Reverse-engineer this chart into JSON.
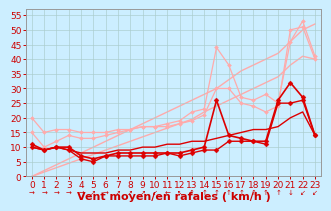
{
  "background_color": "#cceeff",
  "grid_color": "#aacccc",
  "xlabel": "Vent moyen/en rafales ( km/h )",
  "xlabel_color": "#cc0000",
  "tick_color": "#cc0000",
  "xlabel_fontsize": 8,
  "tick_fontsize": 6.5,
  "xlim": [
    -0.5,
    23.5
  ],
  "ylim": [
    0,
    57
  ],
  "yticks": [
    0,
    5,
    10,
    15,
    20,
    25,
    30,
    35,
    40,
    45,
    50,
    55
  ],
  "xticks": [
    0,
    1,
    2,
    3,
    4,
    5,
    6,
    7,
    8,
    9,
    10,
    11,
    12,
    13,
    14,
    15,
    16,
    17,
    18,
    19,
    20,
    21,
    22,
    23
  ],
  "series": [
    {
      "comment": "light pink upper diagonal line (no markers)",
      "x": [
        0,
        1,
        2,
        3,
        4,
        5,
        6,
        7,
        8,
        9,
        10,
        11,
        12,
        13,
        14,
        15,
        16,
        17,
        18,
        19,
        20,
        21,
        22,
        23
      ],
      "y": [
        0,
        2,
        4,
        6,
        8,
        10,
        12,
        14,
        16,
        18,
        20,
        22,
        24,
        26,
        28,
        30,
        33,
        36,
        38,
        40,
        42,
        46,
        50,
        52
      ],
      "color": "#ffaaaa",
      "linewidth": 1.0,
      "marker": null,
      "zorder": 1
    },
    {
      "comment": "light pink middle diagonal line (no markers)",
      "x": [
        0,
        1,
        2,
        3,
        4,
        5,
        6,
        7,
        8,
        9,
        10,
        11,
        12,
        13,
        14,
        15,
        16,
        17,
        18,
        19,
        20,
        21,
        22,
        23
      ],
      "y": [
        0,
        1.5,
        3,
        4.5,
        6,
        7.5,
        9,
        10.5,
        12,
        13.5,
        15,
        16.5,
        18,
        19.5,
        22,
        24,
        26,
        28,
        30,
        32,
        34,
        38,
        41,
        40
      ],
      "color": "#ffaaaa",
      "linewidth": 1.0,
      "marker": null,
      "zorder": 1
    },
    {
      "comment": "light pink with diamond markers - upper jagged",
      "x": [
        0,
        1,
        2,
        3,
        4,
        5,
        6,
        7,
        8,
        9,
        10,
        11,
        12,
        13,
        14,
        15,
        16,
        17,
        18,
        19,
        20,
        21,
        22,
        23
      ],
      "y": [
        20,
        15,
        16,
        16,
        15,
        15,
        15,
        16,
        16,
        17,
        17,
        18,
        19,
        22,
        23,
        44,
        38,
        27,
        26,
        28,
        25,
        46,
        53,
        41
      ],
      "color": "#ffaaaa",
      "linewidth": 0.9,
      "marker": "D",
      "markersize": 2,
      "zorder": 2
    },
    {
      "comment": "light pink with diamond markers - lower jagged",
      "x": [
        0,
        1,
        2,
        3,
        4,
        5,
        6,
        7,
        8,
        9,
        10,
        11,
        12,
        13,
        14,
        15,
        16,
        17,
        18,
        19,
        20,
        21,
        22,
        23
      ],
      "y": [
        15,
        10,
        12,
        14,
        13,
        13,
        14,
        15,
        16,
        17,
        17,
        17,
        18,
        19,
        21,
        30,
        30,
        25,
        24,
        22,
        24,
        50,
        51,
        40
      ],
      "color": "#ffaaaa",
      "linewidth": 0.9,
      "marker": "D",
      "markersize": 2,
      "zorder": 2
    },
    {
      "comment": "dark red with markers - main data upper",
      "x": [
        0,
        1,
        2,
        3,
        4,
        5,
        6,
        7,
        8,
        9,
        10,
        11,
        12,
        13,
        14,
        15,
        16,
        17,
        18,
        19,
        20,
        21,
        22,
        23
      ],
      "y": [
        11,
        9,
        10,
        10,
        7,
        6,
        7,
        8,
        8,
        8,
        8,
        8,
        8,
        9,
        10,
        26,
        14,
        13,
        12,
        12,
        26,
        32,
        27,
        14
      ],
      "color": "#dd0000",
      "linewidth": 1.2,
      "marker": "D",
      "markersize": 2.5,
      "zorder": 4
    },
    {
      "comment": "dark red with markers - main data lower",
      "x": [
        0,
        1,
        2,
        3,
        4,
        5,
        6,
        7,
        8,
        9,
        10,
        11,
        12,
        13,
        14,
        15,
        16,
        17,
        18,
        19,
        20,
        21,
        22,
        23
      ],
      "y": [
        10,
        9,
        10,
        9,
        6,
        5,
        7,
        7,
        7,
        7,
        7,
        8,
        7,
        8,
        9,
        9,
        12,
        12,
        12,
        11,
        25,
        25,
        26,
        14
      ],
      "color": "#dd0000",
      "linewidth": 1.0,
      "marker": "D",
      "markersize": 2.5,
      "zorder": 3
    },
    {
      "comment": "dark red no markers - steady trend",
      "x": [
        0,
        1,
        2,
        3,
        4,
        5,
        6,
        7,
        8,
        9,
        10,
        11,
        12,
        13,
        14,
        15,
        16,
        17,
        18,
        19,
        20,
        21,
        22,
        23
      ],
      "y": [
        10,
        9,
        10,
        9,
        8,
        8,
        8,
        9,
        9,
        10,
        10,
        11,
        11,
        12,
        12,
        13,
        14,
        15,
        16,
        16,
        17,
        20,
        22,
        14
      ],
      "color": "#dd0000",
      "linewidth": 1.0,
      "marker": null,
      "zorder": 3
    }
  ],
  "arrows": [
    "→",
    "→",
    "→",
    "→",
    "→",
    "↗",
    "→",
    "↗",
    "↗",
    "↗",
    "↙",
    "←",
    "↖",
    "↑",
    "↑",
    "↑",
    "↑",
    "↑",
    "↑",
    "↑",
    "↑",
    "↓",
    "↙",
    "↙"
  ]
}
